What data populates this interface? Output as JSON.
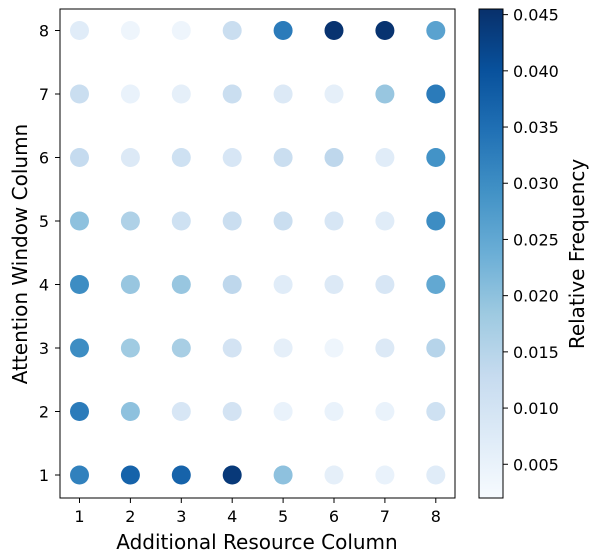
{
  "chart_data": {
    "type": "scatter",
    "xlabel": "Additional Resource Column",
    "ylabel": "Attention Window Column",
    "colorbar_label": "Relative Frequency",
    "colormap": "Blues",
    "x_ticks": [
      1,
      2,
      3,
      4,
      5,
      6,
      7,
      8
    ],
    "y_ticks": [
      1,
      2,
      3,
      4,
      5,
      6,
      7,
      8
    ],
    "xlim": [
      0.5,
      8.5
    ],
    "ylim": [
      0.5,
      8.5
    ],
    "clim": [
      0.002,
      0.0455
    ],
    "colorbar_ticks": [
      "0.005",
      "0.010",
      "0.015",
      "0.020",
      "0.025",
      "0.030",
      "0.035",
      "0.040",
      "0.045"
    ],
    "grid": false,
    "points": [
      {
        "x": 1,
        "y": 8,
        "value": 0.007
      },
      {
        "x": 2,
        "y": 8,
        "value": 0.004
      },
      {
        "x": 3,
        "y": 8,
        "value": 0.004
      },
      {
        "x": 4,
        "y": 8,
        "value": 0.012
      },
      {
        "x": 5,
        "y": 8,
        "value": 0.033
      },
      {
        "x": 6,
        "y": 8,
        "value": 0.045
      },
      {
        "x": 7,
        "y": 8,
        "value": 0.045
      },
      {
        "x": 8,
        "y": 8,
        "value": 0.026
      },
      {
        "x": 1,
        "y": 7,
        "value": 0.012
      },
      {
        "x": 2,
        "y": 7,
        "value": 0.005
      },
      {
        "x": 3,
        "y": 7,
        "value": 0.006
      },
      {
        "x": 4,
        "y": 7,
        "value": 0.012
      },
      {
        "x": 5,
        "y": 7,
        "value": 0.008
      },
      {
        "x": 6,
        "y": 7,
        "value": 0.006
      },
      {
        "x": 7,
        "y": 7,
        "value": 0.019
      },
      {
        "x": 8,
        "y": 7,
        "value": 0.033
      },
      {
        "x": 1,
        "y": 6,
        "value": 0.013
      },
      {
        "x": 2,
        "y": 6,
        "value": 0.008
      },
      {
        "x": 3,
        "y": 6,
        "value": 0.011
      },
      {
        "x": 4,
        "y": 6,
        "value": 0.009
      },
      {
        "x": 5,
        "y": 6,
        "value": 0.012
      },
      {
        "x": 6,
        "y": 6,
        "value": 0.014
      },
      {
        "x": 7,
        "y": 6,
        "value": 0.007
      },
      {
        "x": 8,
        "y": 6,
        "value": 0.029
      },
      {
        "x": 1,
        "y": 5,
        "value": 0.02
      },
      {
        "x": 2,
        "y": 5,
        "value": 0.016
      },
      {
        "x": 3,
        "y": 5,
        "value": 0.011
      },
      {
        "x": 4,
        "y": 5,
        "value": 0.012
      },
      {
        "x": 5,
        "y": 5,
        "value": 0.012
      },
      {
        "x": 6,
        "y": 5,
        "value": 0.009
      },
      {
        "x": 7,
        "y": 5,
        "value": 0.007
      },
      {
        "x": 8,
        "y": 5,
        "value": 0.03
      },
      {
        "x": 1,
        "y": 4,
        "value": 0.03
      },
      {
        "x": 2,
        "y": 4,
        "value": 0.019
      },
      {
        "x": 3,
        "y": 4,
        "value": 0.019
      },
      {
        "x": 4,
        "y": 4,
        "value": 0.014
      },
      {
        "x": 5,
        "y": 4,
        "value": 0.007
      },
      {
        "x": 6,
        "y": 4,
        "value": 0.008
      },
      {
        "x": 7,
        "y": 4,
        "value": 0.009
      },
      {
        "x": 8,
        "y": 4,
        "value": 0.025
      },
      {
        "x": 1,
        "y": 3,
        "value": 0.03
      },
      {
        "x": 2,
        "y": 3,
        "value": 0.018
      },
      {
        "x": 3,
        "y": 3,
        "value": 0.017
      },
      {
        "x": 4,
        "y": 3,
        "value": 0.01
      },
      {
        "x": 5,
        "y": 3,
        "value": 0.006
      },
      {
        "x": 6,
        "y": 3,
        "value": 0.004
      },
      {
        "x": 7,
        "y": 3,
        "value": 0.008
      },
      {
        "x": 8,
        "y": 3,
        "value": 0.015
      },
      {
        "x": 1,
        "y": 2,
        "value": 0.033
      },
      {
        "x": 2,
        "y": 2,
        "value": 0.02
      },
      {
        "x": 3,
        "y": 2,
        "value": 0.009
      },
      {
        "x": 4,
        "y": 2,
        "value": 0.01
      },
      {
        "x": 5,
        "y": 2,
        "value": 0.005
      },
      {
        "x": 6,
        "y": 2,
        "value": 0.005
      },
      {
        "x": 7,
        "y": 2,
        "value": 0.005
      },
      {
        "x": 8,
        "y": 2,
        "value": 0.011
      },
      {
        "x": 1,
        "y": 1,
        "value": 0.032
      },
      {
        "x": 2,
        "y": 1,
        "value": 0.037
      },
      {
        "x": 3,
        "y": 1,
        "value": 0.037
      },
      {
        "x": 4,
        "y": 1,
        "value": 0.044
      },
      {
        "x": 5,
        "y": 1,
        "value": 0.02
      },
      {
        "x": 6,
        "y": 1,
        "value": 0.006
      },
      {
        "x": 7,
        "y": 1,
        "value": 0.005
      },
      {
        "x": 8,
        "y": 1,
        "value": 0.007
      }
    ]
  }
}
